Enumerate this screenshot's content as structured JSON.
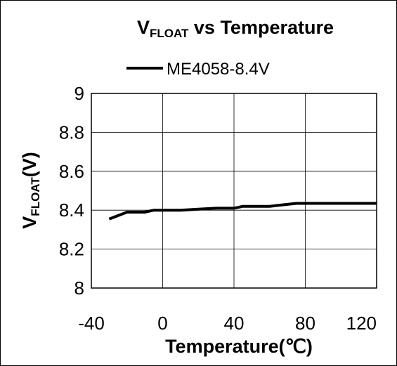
{
  "chart_data": {
    "type": "line",
    "title_main": "V",
    "title_sub": "FLOAT",
    "title_rest": " vs Temperature",
    "ylabel_main": "V",
    "ylabel_sub": "FLOAT",
    "ylabel_rest": "(V)",
    "xlabel": "Temperature(℃)",
    "xlim": [
      -40,
      120
    ],
    "ylim": [
      8,
      9
    ],
    "x_ticks": [
      "-40",
      "0",
      "40",
      "80",
      "120"
    ],
    "y_ticks": [
      "8",
      "8.2",
      "8.4",
      "8.6",
      "8.8",
      "9"
    ],
    "grid": true,
    "legend_position": "top",
    "line_color": "#000000",
    "series": [
      {
        "name": "ME4058-8.4V",
        "x": [
          -30,
          -20,
          -10,
          -5,
          0,
          10,
          20,
          30,
          40,
          45,
          60,
          65,
          75,
          90,
          100,
          120
        ],
        "y": [
          8.355,
          8.39,
          8.39,
          8.4,
          8.4,
          8.4,
          8.405,
          8.41,
          8.41,
          8.42,
          8.42,
          8.425,
          8.435,
          8.435,
          8.435,
          8.435
        ]
      }
    ]
  }
}
